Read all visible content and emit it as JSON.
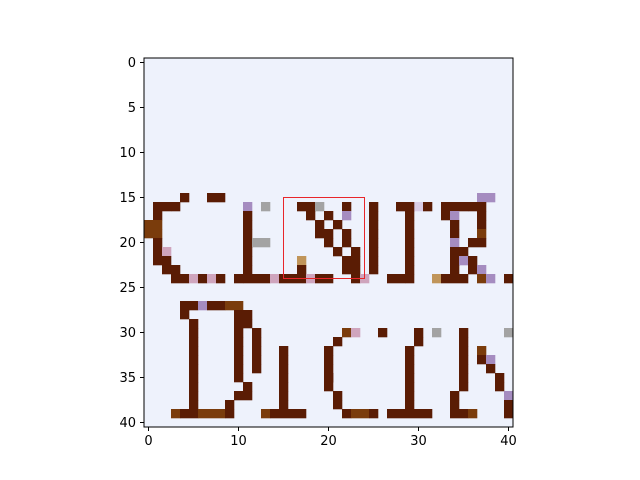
{
  "chart_data": {
    "type": "heatmap",
    "title": "",
    "xlabel": "",
    "ylabel": "",
    "grid": false,
    "grid_size": [
      41,
      41
    ],
    "xlim": [
      -0.5,
      40.5
    ],
    "ylim": [
      40.5,
      -0.5
    ],
    "x_ticks": [
      0,
      10,
      20,
      30,
      40
    ],
    "y_ticks": [
      0,
      5,
      10,
      15,
      20,
      25,
      30,
      35,
      40
    ],
    "colors": {
      "background": "#eef2fc",
      "dark_brown": "#5a1c04",
      "mid_brown": "#7a3c0c",
      "light_pixel": "#d9cde6",
      "grey_pixel": "#a3a3a3",
      "tan_pixel": "#c0955a",
      "pink_pixel": "#cfa5bd",
      "lavender_pixel": "#a58cc0",
      "highlight": "#e8262a"
    },
    "highlight_box": {
      "x": [
        15,
        24
      ],
      "y": [
        15,
        24
      ]
    },
    "pixel_runs": [
      {
        "y": 15,
        "x0": 4,
        "x1": 4,
        "c": "dark_brown"
      },
      {
        "y": 15,
        "x0": 7,
        "x1": 8,
        "c": "dark_brown"
      },
      {
        "y": 15,
        "x0": 37,
        "x1": 38,
        "c": "lavender_pixel"
      },
      {
        "y": 16,
        "x0": 3,
        "x1": 3,
        "c": "dark_brown"
      },
      {
        "y": 16,
        "x0": 28,
        "x1": 30,
        "c": "light_pixel"
      },
      {
        "y": 16,
        "x0": 1,
        "x1": 2,
        "c": "dark_brown"
      },
      {
        "y": 16,
        "x0": 11,
        "x1": 11,
        "c": "lavender_pixel"
      },
      {
        "y": 16,
        "x0": 13,
        "x1": 13,
        "c": "grey_pixel"
      },
      {
        "y": 16,
        "x0": 17,
        "x1": 18,
        "c": "dark_brown"
      },
      {
        "y": 16,
        "x0": 19,
        "x1": 19,
        "c": "grey_pixel"
      },
      {
        "y": 16,
        "x0": 22,
        "x1": 22,
        "c": "dark_brown"
      },
      {
        "y": 16,
        "x0": 25,
        "x1": 25,
        "c": "dark_brown"
      },
      {
        "y": 16,
        "x0": 28,
        "x1": 29,
        "c": "dark_brown"
      },
      {
        "y": 16,
        "x0": 31,
        "x1": 31,
        "c": "dark_brown"
      },
      {
        "y": 16,
        "x0": 33,
        "x1": 35,
        "c": "dark_brown"
      },
      {
        "y": 16,
        "x0": 36,
        "x1": 37,
        "c": "dark_brown"
      },
      {
        "y": 17,
        "x0": 1,
        "x1": 1,
        "c": "dark_brown"
      },
      {
        "y": 17,
        "x0": 11,
        "x1": 11,
        "c": "dark_brown"
      },
      {
        "y": 17,
        "x0": 18,
        "x1": 18,
        "c": "dark_brown"
      },
      {
        "y": 17,
        "x0": 20,
        "x1": 20,
        "c": "dark_brown"
      },
      {
        "y": 17,
        "x0": 22,
        "x1": 22,
        "c": "lavender_pixel"
      },
      {
        "y": 17,
        "x0": 25,
        "x1": 25,
        "c": "dark_brown"
      },
      {
        "y": 17,
        "x0": 29,
        "x1": 29,
        "c": "dark_brown"
      },
      {
        "y": 17,
        "x0": 33,
        "x1": 33,
        "c": "dark_brown"
      },
      {
        "y": 17,
        "x0": 34,
        "x1": 34,
        "c": "lavender_pixel"
      },
      {
        "y": 17,
        "x0": 37,
        "x1": 37,
        "c": "dark_brown"
      },
      {
        "y": 18,
        "x0": 0,
        "x1": 1,
        "c": "mid_brown"
      },
      {
        "y": 18,
        "x0": 11,
        "x1": 11,
        "c": "dark_brown"
      },
      {
        "y": 18,
        "x0": 19,
        "x1": 19,
        "c": "dark_brown"
      },
      {
        "y": 18,
        "x0": 21,
        "x1": 21,
        "c": "dark_brown"
      },
      {
        "y": 18,
        "x0": 25,
        "x1": 25,
        "c": "dark_brown"
      },
      {
        "y": 18,
        "x0": 29,
        "x1": 29,
        "c": "dark_brown"
      },
      {
        "y": 18,
        "x0": 34,
        "x1": 34,
        "c": "dark_brown"
      },
      {
        "y": 18,
        "x0": 37,
        "x1": 37,
        "c": "dark_brown"
      },
      {
        "y": 19,
        "x0": 0,
        "x1": 1,
        "c": "mid_brown"
      },
      {
        "y": 19,
        "x0": 11,
        "x1": 11,
        "c": "dark_brown"
      },
      {
        "y": 19,
        "x0": 19,
        "x1": 20,
        "c": "dark_brown"
      },
      {
        "y": 19,
        "x0": 22,
        "x1": 22,
        "c": "dark_brown"
      },
      {
        "y": 19,
        "x0": 25,
        "x1": 25,
        "c": "dark_brown"
      },
      {
        "y": 19,
        "x0": 29,
        "x1": 29,
        "c": "dark_brown"
      },
      {
        "y": 19,
        "x0": 34,
        "x1": 34,
        "c": "dark_brown"
      },
      {
        "y": 19,
        "x0": 37,
        "x1": 37,
        "c": "mid_brown"
      },
      {
        "y": 20,
        "x0": 1,
        "x1": 1,
        "c": "dark_brown"
      },
      {
        "y": 20,
        "x0": 11,
        "x1": 11,
        "c": "dark_brown"
      },
      {
        "y": 20,
        "x0": 12,
        "x1": 13,
        "c": "grey_pixel"
      },
      {
        "y": 20,
        "x0": 20,
        "x1": 20,
        "c": "dark_brown"
      },
      {
        "y": 20,
        "x0": 22,
        "x1": 22,
        "c": "dark_brown"
      },
      {
        "y": 20,
        "x0": 25,
        "x1": 25,
        "c": "dark_brown"
      },
      {
        "y": 20,
        "x0": 29,
        "x1": 29,
        "c": "dark_brown"
      },
      {
        "y": 20,
        "x0": 34,
        "x1": 34,
        "c": "lavender_pixel"
      },
      {
        "y": 20,
        "x0": 36,
        "x1": 37,
        "c": "dark_brown"
      },
      {
        "y": 21,
        "x0": 1,
        "x1": 1,
        "c": "dark_brown"
      },
      {
        "y": 21,
        "x0": 2,
        "x1": 2,
        "c": "pink_pixel"
      },
      {
        "y": 21,
        "x0": 11,
        "x1": 11,
        "c": "dark_brown"
      },
      {
        "y": 21,
        "x0": 21,
        "x1": 21,
        "c": "dark_brown"
      },
      {
        "y": 21,
        "x0": 23,
        "x1": 23,
        "c": "dark_brown"
      },
      {
        "y": 21,
        "x0": 25,
        "x1": 25,
        "c": "dark_brown"
      },
      {
        "y": 21,
        "x0": 29,
        "x1": 29,
        "c": "dark_brown"
      },
      {
        "y": 21,
        "x0": 34,
        "x1": 35,
        "c": "dark_brown"
      },
      {
        "y": 22,
        "x0": 1,
        "x1": 2,
        "c": "dark_brown"
      },
      {
        "y": 22,
        "x0": 11,
        "x1": 11,
        "c": "dark_brown"
      },
      {
        "y": 22,
        "x0": 17,
        "x1": 17,
        "c": "tan_pixel"
      },
      {
        "y": 22,
        "x0": 22,
        "x1": 22,
        "c": "dark_brown"
      },
      {
        "y": 22,
        "x0": 23,
        "x1": 23,
        "c": "dark_brown"
      },
      {
        "y": 22,
        "x0": 25,
        "x1": 25,
        "c": "dark_brown"
      },
      {
        "y": 22,
        "x0": 29,
        "x1": 29,
        "c": "dark_brown"
      },
      {
        "y": 22,
        "x0": 34,
        "x1": 34,
        "c": "dark_brown"
      },
      {
        "y": 22,
        "x0": 35,
        "x1": 35,
        "c": "lavender_pixel"
      },
      {
        "y": 22,
        "x0": 36,
        "x1": 36,
        "c": "dark_brown"
      },
      {
        "y": 23,
        "x0": 2,
        "x1": 3,
        "c": "dark_brown"
      },
      {
        "y": 23,
        "x0": 11,
        "x1": 11,
        "c": "dark_brown"
      },
      {
        "y": 23,
        "x0": 17,
        "x1": 17,
        "c": "dark_brown"
      },
      {
        "y": 23,
        "x0": 22,
        "x1": 22,
        "c": "dark_brown"
      },
      {
        "y": 23,
        "x0": 23,
        "x1": 23,
        "c": "dark_brown"
      },
      {
        "y": 23,
        "x0": 25,
        "x1": 25,
        "c": "dark_brown"
      },
      {
        "y": 23,
        "x0": 29,
        "x1": 29,
        "c": "dark_brown"
      },
      {
        "y": 23,
        "x0": 34,
        "x1": 34,
        "c": "dark_brown"
      },
      {
        "y": 23,
        "x0": 36,
        "x1": 36,
        "c": "dark_brown"
      },
      {
        "y": 23,
        "x0": 37,
        "x1": 37,
        "c": "lavender_pixel"
      },
      {
        "y": 24,
        "x0": 3,
        "x1": 4,
        "c": "dark_brown"
      },
      {
        "y": 24,
        "x0": 5,
        "x1": 5,
        "c": "pink_pixel"
      },
      {
        "y": 24,
        "x0": 6,
        "x1": 6,
        "c": "dark_brown"
      },
      {
        "y": 24,
        "x0": 7,
        "x1": 7,
        "c": "pink_pixel"
      },
      {
        "y": 24,
        "x0": 8,
        "x1": 8,
        "c": "dark_brown"
      },
      {
        "y": 24,
        "x0": 10,
        "x1": 10,
        "c": "dark_brown"
      },
      {
        "y": 24,
        "x0": 11,
        "x1": 13,
        "c": "dark_brown"
      },
      {
        "y": 24,
        "x0": 14,
        "x1": 14,
        "c": "pink_pixel"
      },
      {
        "y": 24,
        "x0": 15,
        "x1": 17,
        "c": "dark_brown"
      },
      {
        "y": 24,
        "x0": 18,
        "x1": 18,
        "c": "pink_pixel"
      },
      {
        "y": 24,
        "x0": 19,
        "x1": 20,
        "c": "dark_brown"
      },
      {
        "y": 24,
        "x0": 23,
        "x1": 23,
        "c": "dark_brown"
      },
      {
        "y": 24,
        "x0": 24,
        "x1": 24,
        "c": "pink_pixel"
      },
      {
        "y": 24,
        "x0": 27,
        "x1": 28,
        "c": "dark_brown"
      },
      {
        "y": 24,
        "x0": 29,
        "x1": 29,
        "c": "dark_brown"
      },
      {
        "y": 24,
        "x0": 32,
        "x1": 32,
        "c": "tan_pixel"
      },
      {
        "y": 24,
        "x0": 33,
        "x1": 35,
        "c": "dark_brown"
      },
      {
        "y": 24,
        "x0": 37,
        "x1": 37,
        "c": "mid_brown"
      },
      {
        "y": 24,
        "x0": 38,
        "x1": 38,
        "c": "lavender_pixel"
      },
      {
        "y": 24,
        "x0": 40,
        "x1": 40,
        "c": "dark_brown"
      },
      {
        "y": 27,
        "x0": 4,
        "x1": 4,
        "c": "dark_brown"
      },
      {
        "y": 27,
        "x0": 5,
        "x1": 5,
        "c": "dark_brown"
      },
      {
        "y": 27,
        "x0": 6,
        "x1": 6,
        "c": "lavender_pixel"
      },
      {
        "y": 27,
        "x0": 7,
        "x1": 8,
        "c": "dark_brown"
      },
      {
        "y": 27,
        "x0": 9,
        "x1": 10,
        "c": "mid_brown"
      },
      {
        "y": 28,
        "x0": 4,
        "x1": 4,
        "c": "dark_brown"
      },
      {
        "y": 28,
        "x0": 10,
        "x1": 11,
        "c": "dark_brown"
      },
      {
        "y": 29,
        "x0": 5,
        "x1": 5,
        "c": "dark_brown"
      },
      {
        "y": 29,
        "x0": 10,
        "x1": 10,
        "c": "dark_brown"
      },
      {
        "y": 29,
        "x0": 11,
        "x1": 11,
        "c": "dark_brown"
      },
      {
        "y": 30,
        "x0": 5,
        "x1": 5,
        "c": "dark_brown"
      },
      {
        "y": 30,
        "x0": 10,
        "x1": 10,
        "c": "dark_brown"
      },
      {
        "y": 30,
        "x0": 12,
        "x1": 12,
        "c": "dark_brown"
      },
      {
        "y": 30,
        "x0": 22,
        "x1": 22,
        "c": "mid_brown"
      },
      {
        "y": 30,
        "x0": 23,
        "x1": 23,
        "c": "pink_pixel"
      },
      {
        "y": 30,
        "x0": 26,
        "x1": 26,
        "c": "dark_brown"
      },
      {
        "y": 30,
        "x0": 30,
        "x1": 30,
        "c": "dark_brown"
      },
      {
        "y": 30,
        "x0": 32,
        "x1": 32,
        "c": "grey_pixel"
      },
      {
        "y": 30,
        "x0": 35,
        "x1": 35,
        "c": "dark_brown"
      },
      {
        "y": 30,
        "x0": 40,
        "x1": 40,
        "c": "grey_pixel"
      },
      {
        "y": 31,
        "x0": 5,
        "x1": 5,
        "c": "dark_brown"
      },
      {
        "y": 31,
        "x0": 10,
        "x1": 10,
        "c": "dark_brown"
      },
      {
        "y": 31,
        "x0": 12,
        "x1": 12,
        "c": "dark_brown"
      },
      {
        "y": 31,
        "x0": 21,
        "x1": 21,
        "c": "dark_brown"
      },
      {
        "y": 31,
        "x0": 30,
        "x1": 30,
        "c": "dark_brown"
      },
      {
        "y": 31,
        "x0": 35,
        "x1": 35,
        "c": "dark_brown"
      },
      {
        "y": 32,
        "x0": 5,
        "x1": 5,
        "c": "dark_brown"
      },
      {
        "y": 32,
        "x0": 10,
        "x1": 10,
        "c": "dark_brown"
      },
      {
        "y": 32,
        "x0": 12,
        "x1": 12,
        "c": "dark_brown"
      },
      {
        "y": 32,
        "x0": 15,
        "x1": 15,
        "c": "dark_brown"
      },
      {
        "y": 32,
        "x0": 20,
        "x1": 20,
        "c": "dark_brown"
      },
      {
        "y": 32,
        "x0": 29,
        "x1": 29,
        "c": "dark_brown"
      },
      {
        "y": 32,
        "x0": 35,
        "x1": 35,
        "c": "dark_brown"
      },
      {
        "y": 32,
        "x0": 37,
        "x1": 37,
        "c": "mid_brown"
      },
      {
        "y": 33,
        "x0": 5,
        "x1": 5,
        "c": "dark_brown"
      },
      {
        "y": 33,
        "x0": 10,
        "x1": 10,
        "c": "dark_brown"
      },
      {
        "y": 33,
        "x0": 12,
        "x1": 12,
        "c": "dark_brown"
      },
      {
        "y": 33,
        "x0": 15,
        "x1": 15,
        "c": "dark_brown"
      },
      {
        "y": 33,
        "x0": 20,
        "x1": 20,
        "c": "dark_brown"
      },
      {
        "y": 33,
        "x0": 29,
        "x1": 29,
        "c": "dark_brown"
      },
      {
        "y": 33,
        "x0": 35,
        "x1": 35,
        "c": "dark_brown"
      },
      {
        "y": 33,
        "x0": 37,
        "x1": 37,
        "c": "dark_brown"
      },
      {
        "y": 33,
        "x0": 38,
        "x1": 38,
        "c": "lavender_pixel"
      },
      {
        "y": 34,
        "x0": 5,
        "x1": 5,
        "c": "dark_brown"
      },
      {
        "y": 34,
        "x0": 10,
        "x1": 10,
        "c": "dark_brown"
      },
      {
        "y": 34,
        "x0": 12,
        "x1": 12,
        "c": "dark_brown"
      },
      {
        "y": 34,
        "x0": 15,
        "x1": 15,
        "c": "dark_brown"
      },
      {
        "y": 34,
        "x0": 20,
        "x1": 20,
        "c": "dark_brown"
      },
      {
        "y": 34,
        "x0": 29,
        "x1": 29,
        "c": "dark_brown"
      },
      {
        "y": 34,
        "x0": 35,
        "x1": 35,
        "c": "dark_brown"
      },
      {
        "y": 34,
        "x0": 38,
        "x1": 38,
        "c": "dark_brown"
      },
      {
        "y": 35,
        "x0": 5,
        "x1": 5,
        "c": "dark_brown"
      },
      {
        "y": 35,
        "x0": 10,
        "x1": 10,
        "c": "dark_brown"
      },
      {
        "y": 35,
        "x0": 15,
        "x1": 15,
        "c": "dark_brown"
      },
      {
        "y": 35,
        "x0": 20,
        "x1": 20,
        "c": "dark_brown"
      },
      {
        "y": 35,
        "x0": 20,
        "x1": 20,
        "c": "dark_brown"
      },
      {
        "y": 35,
        "x0": 29,
        "x1": 29,
        "c": "dark_brown"
      },
      {
        "y": 35,
        "x0": 35,
        "x1": 35,
        "c": "dark_brown"
      },
      {
        "y": 35,
        "x0": 39,
        "x1": 39,
        "c": "dark_brown"
      },
      {
        "y": 36,
        "x0": 5,
        "x1": 5,
        "c": "dark_brown"
      },
      {
        "y": 36,
        "x0": 11,
        "x1": 11,
        "c": "dark_brown"
      },
      {
        "y": 36,
        "x0": 15,
        "x1": 15,
        "c": "dark_brown"
      },
      {
        "y": 36,
        "x0": 20,
        "x1": 20,
        "c": "dark_brown"
      },
      {
        "y": 36,
        "x0": 29,
        "x1": 29,
        "c": "dark_brown"
      },
      {
        "y": 36,
        "x0": 35,
        "x1": 35,
        "c": "dark_brown"
      },
      {
        "y": 36,
        "x0": 39,
        "x1": 39,
        "c": "dark_brown"
      },
      {
        "y": 37,
        "x0": 5,
        "x1": 5,
        "c": "dark_brown"
      },
      {
        "y": 37,
        "x0": 10,
        "x1": 11,
        "c": "dark_brown"
      },
      {
        "y": 37,
        "x0": 15,
        "x1": 15,
        "c": "dark_brown"
      },
      {
        "y": 37,
        "x0": 21,
        "x1": 21,
        "c": "dark_brown"
      },
      {
        "y": 37,
        "x0": 29,
        "x1": 29,
        "c": "dark_brown"
      },
      {
        "y": 37,
        "x0": 34,
        "x1": 34,
        "c": "dark_brown"
      },
      {
        "y": 37,
        "x0": 40,
        "x1": 40,
        "c": "lavender_pixel"
      },
      {
        "y": 38,
        "x0": 5,
        "x1": 5,
        "c": "dark_brown"
      },
      {
        "y": 38,
        "x0": 9,
        "x1": 9,
        "c": "dark_brown"
      },
      {
        "y": 38,
        "x0": 15,
        "x1": 15,
        "c": "dark_brown"
      },
      {
        "y": 38,
        "x0": 21,
        "x1": 21,
        "c": "dark_brown"
      },
      {
        "y": 38,
        "x0": 29,
        "x1": 29,
        "c": "dark_brown"
      },
      {
        "y": 38,
        "x0": 34,
        "x1": 34,
        "c": "dark_brown"
      },
      {
        "y": 38,
        "x0": 40,
        "x1": 40,
        "c": "dark_brown"
      },
      {
        "y": 39,
        "x0": 3,
        "x1": 3,
        "c": "mid_brown"
      },
      {
        "y": 39,
        "x0": 4,
        "x1": 5,
        "c": "dark_brown"
      },
      {
        "y": 39,
        "x0": 6,
        "x1": 8,
        "c": "mid_brown"
      },
      {
        "y": 39,
        "x0": 9,
        "x1": 9,
        "c": "dark_brown"
      },
      {
        "y": 39,
        "x0": 13,
        "x1": 13,
        "c": "mid_brown"
      },
      {
        "y": 39,
        "x0": 14,
        "x1": 17,
        "c": "dark_brown"
      },
      {
        "y": 39,
        "x0": 22,
        "x1": 22,
        "c": "dark_brown"
      },
      {
        "y": 39,
        "x0": 23,
        "x1": 24,
        "c": "mid_brown"
      },
      {
        "y": 39,
        "x0": 25,
        "x1": 25,
        "c": "dark_brown"
      },
      {
        "y": 39,
        "x0": 27,
        "x1": 31,
        "c": "dark_brown"
      },
      {
        "y": 39,
        "x0": 34,
        "x1": 35,
        "c": "dark_brown"
      },
      {
        "y": 39,
        "x0": 36,
        "x1": 36,
        "c": "mid_brown"
      },
      {
        "y": 39,
        "x0": 40,
        "x1": 40,
        "c": "dark_brown"
      }
    ]
  }
}
